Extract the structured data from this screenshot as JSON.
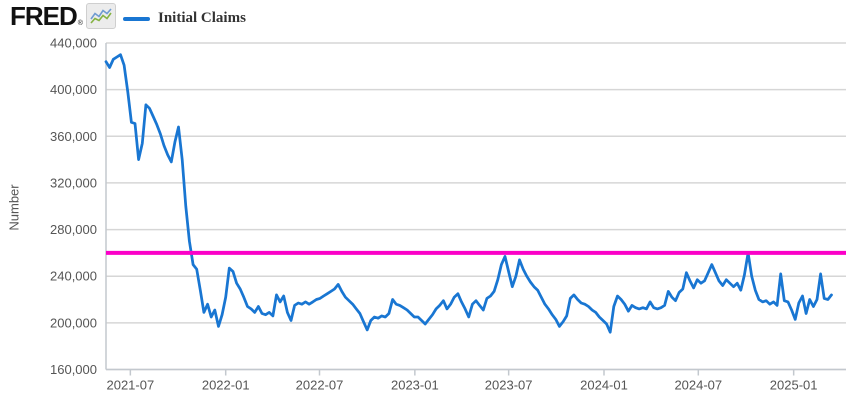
{
  "header": {
    "logo_text": "FRED",
    "registered_mark": "®",
    "logo_sparkline_colors": {
      "blue": "#6f9bd1",
      "green": "#85b343"
    },
    "legend": {
      "label": "Initial Claims",
      "swatch_color": "#1976d2"
    }
  },
  "chart_data": {
    "type": "line",
    "ylabel": "Number",
    "ylim": [
      160000,
      440000
    ],
    "grid": true,
    "legend_position": "top-left",
    "y_ticks": [
      {
        "value": 440000,
        "label": "440,000"
      },
      {
        "value": 400000,
        "label": "400,000"
      },
      {
        "value": 360000,
        "label": "360,000"
      },
      {
        "value": 320000,
        "label": "320,000"
      },
      {
        "value": 280000,
        "label": "280,000"
      },
      {
        "value": 240000,
        "label": "240,000"
      },
      {
        "value": 200000,
        "label": "200,000"
      },
      {
        "value": 160000,
        "label": "160,000"
      }
    ],
    "x_ticks": [
      {
        "date": "2021-07-01",
        "label": "2021-07"
      },
      {
        "date": "2022-01-01",
        "label": "2022-01"
      },
      {
        "date": "2022-07-01",
        "label": "2022-07"
      },
      {
        "date": "2023-01-01",
        "label": "2023-01"
      },
      {
        "date": "2023-07-01",
        "label": "2023-07"
      },
      {
        "date": "2024-01-01",
        "label": "2024-01"
      },
      {
        "date": "2024-07-01",
        "label": "2024-07"
      },
      {
        "date": "2025-01-01",
        "label": "2025-01"
      }
    ],
    "x_domain": [
      "2021-05-15",
      "2025-04-12"
    ],
    "horizontal_line": {
      "value": 260000,
      "color": "#fb00c8"
    },
    "series": [
      {
        "name": "Initial Claims",
        "color": "#1976d2",
        "frequency": "weekly",
        "start_date": "2021-05-15",
        "values": [
          424000,
          419000,
          426000,
          428000,
          430000,
          421000,
          398000,
          372000,
          371000,
          340000,
          354000,
          387000,
          384000,
          377000,
          370000,
          362000,
          352000,
          344000,
          338000,
          355000,
          368000,
          340000,
          300000,
          270000,
          250000,
          246000,
          228000,
          209000,
          216000,
          205000,
          211000,
          197000,
          207000,
          222000,
          247000,
          244000,
          234000,
          229000,
          222000,
          214000,
          212000,
          209000,
          214000,
          208000,
          207000,
          209000,
          206000,
          224000,
          218000,
          223000,
          209000,
          202000,
          215000,
          217000,
          216000,
          218000,
          216000,
          218000,
          220000,
          221000,
          223000,
          225000,
          227000,
          229000,
          233000,
          227000,
          222000,
          219000,
          216000,
          212000,
          208000,
          201000,
          194000,
          202000,
          205000,
          204000,
          206000,
          205000,
          208000,
          220000,
          216000,
          215000,
          213000,
          211000,
          208000,
          205000,
          205000,
          202000,
          199000,
          203000,
          207000,
          212000,
          215000,
          219000,
          212000,
          216000,
          222000,
          225000,
          218000,
          212000,
          205000,
          216000,
          219000,
          215000,
          211000,
          221000,
          223000,
          227000,
          237000,
          250000,
          257000,
          244000,
          231000,
          240000,
          254000,
          246000,
          240000,
          235000,
          231000,
          228000,
          222000,
          216000,
          212000,
          207000,
          203000,
          197000,
          201000,
          206000,
          221000,
          224000,
          220000,
          217000,
          216000,
          214000,
          211000,
          209000,
          205000,
          202000,
          199000,
          192000,
          214000,
          223000,
          220000,
          216000,
          210000,
          215000,
          213000,
          212000,
          213000,
          212000,
          218000,
          213000,
          212000,
          213000,
          215000,
          227000,
          222000,
          219000,
          226000,
          229000,
          243000,
          236000,
          230000,
          237000,
          234000,
          236000,
          243000,
          250000,
          243000,
          236000,
          232000,
          237000,
          234000,
          231000,
          234000,
          228000,
          241000,
          260000,
          240000,
          228000,
          220000,
          218000,
          219000,
          216000,
          218000,
          215000,
          242000,
          219000,
          218000,
          211000,
          203000,
          217000,
          223000,
          208000,
          220000,
          214000,
          220000,
          242000,
          221000,
          220000,
          224000
        ]
      }
    ]
  },
  "colors": {
    "grid": "#d6d6d6",
    "axis": "#c3c8ce",
    "tick_text": "#555555",
    "background": "#ffffff"
  }
}
